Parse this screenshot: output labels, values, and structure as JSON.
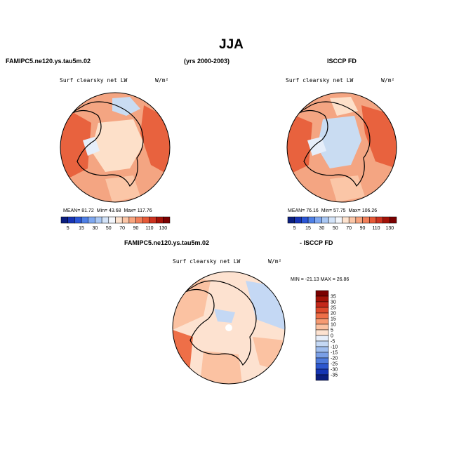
{
  "title": "JJA",
  "top_row": {
    "left_header": "FAMIPC5.ne120.ys.tau5m.02",
    "center_header": "(yrs 2000-2003)",
    "right_header": "ISCCP FD"
  },
  "bottom_row": {
    "left_header": "FAMIPC5.ne120.ys.tau5m.02",
    "right_header": "- ISCCP FD"
  },
  "chart_data": [
    {
      "type": "heatmap",
      "projection": "north-polar-stereographic",
      "title": "Surf clearsky net LW",
      "units": "W/m²",
      "stats": {
        "mean": "81.72",
        "min": "43.68",
        "max": "117.76"
      },
      "stats_label": {
        "mean": "MEAN=",
        "min": "Min=",
        "max": "Max="
      },
      "colorbar": {
        "orientation": "horizontal",
        "levels": [
          5,
          15,
          30,
          50,
          70,
          90,
          110,
          130
        ],
        "colors": [
          "#0b1e7e",
          "#1734b4",
          "#2b56d6",
          "#4f80e6",
          "#7fa8f0",
          "#aac8f4",
          "#d3e3f8",
          "#f3f6fb",
          "#fde3cf",
          "#fbc6a7",
          "#f8a57f",
          "#f1805a",
          "#e65a38",
          "#cc3320",
          "#a31208",
          "#7a0000"
        ]
      },
      "dominant_colors": [
        "#f4a582",
        "#fde0c9",
        "#e8623e",
        "#c9dcf2"
      ]
    },
    {
      "type": "heatmap",
      "projection": "north-polar-stereographic",
      "title": "Surf clearsky net LW",
      "units": "W/m²",
      "stats": {
        "mean": "76.16",
        "min": "57.75",
        "max": "106.26"
      },
      "stats_label": {
        "mean": "MEAN=",
        "min": "Min=",
        "max": "Max="
      },
      "colorbar": {
        "orientation": "horizontal",
        "levels": [
          5,
          15,
          30,
          50,
          70,
          90,
          110,
          130
        ],
        "colors": [
          "#0b1e7e",
          "#1734b4",
          "#2b56d6",
          "#4f80e6",
          "#7fa8f0",
          "#aac8f4",
          "#d3e3f8",
          "#f3f6fb",
          "#fde3cf",
          "#fbc6a7",
          "#f8a57f",
          "#f1805a",
          "#e65a38",
          "#cc3320",
          "#a31208",
          "#7a0000"
        ]
      },
      "dominant_colors": [
        "#f4a582",
        "#fde0c9",
        "#e8623e",
        "#c9dcf2"
      ]
    },
    {
      "type": "heatmap",
      "projection": "north-polar-stereographic",
      "title": "Surf clearsky net LW",
      "units": "W/m²",
      "range_text": "MIN = -21.13  MAX =  26.86",
      "colorbar": {
        "orientation": "vertical",
        "levels": [
          35,
          30,
          25,
          20,
          15,
          10,
          5,
          0,
          -5,
          -10,
          -15,
          -20,
          -25,
          -30,
          -35
        ],
        "colors": [
          "#7a0000",
          "#a31208",
          "#c4281a",
          "#dd4a2c",
          "#ee6f48",
          "#f69a72",
          "#fbc2a2",
          "#fde2d0",
          "#e6eefa",
          "#c4d8f4",
          "#9fbdee",
          "#7a9fe6",
          "#4f7bdc",
          "#2d57cf",
          "#1535b4",
          "#0b1e7e"
        ]
      },
      "dominant_colors": [
        "#fbc2a2",
        "#fde2d0",
        "#c4d8f4",
        "#ee6f48"
      ]
    }
  ]
}
